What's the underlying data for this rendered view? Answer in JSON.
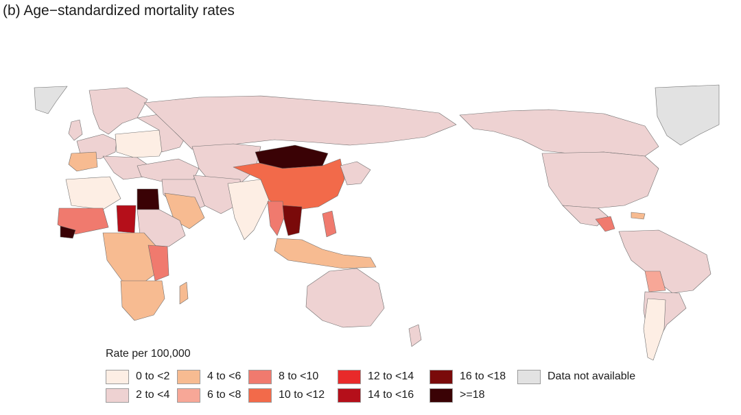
{
  "title": "(b)  Age−standardized mortality rates",
  "palette": {
    "c0": "#fdeee4",
    "c2": "#eed2d2",
    "c4": "#f7bb91",
    "c6": "#f7a797",
    "c8": "#f07a6e",
    "c10": "#f26a4a",
    "c12": "#e82a2a",
    "c14": "#b50f1a",
    "c16": "#7a0a0a",
    "c18": "#3a0205",
    "na": "#e2e2e2"
  },
  "legend": {
    "title": "Rate per 100,000",
    "items": [
      {
        "label": "0 to <2",
        "color": "#fdeee4"
      },
      {
        "label": "2 to <4",
        "color": "#eed2d2"
      },
      {
        "label": "4 to <6",
        "color": "#f7bb91"
      },
      {
        "label": "6 to <8",
        "color": "#f7a797"
      },
      {
        "label": "8 to <10",
        "color": "#f07a6e"
      },
      {
        "label": "10 to <12",
        "color": "#f26a4a"
      },
      {
        "label": "12 to <14",
        "color": "#e82a2a"
      },
      {
        "label": "14 to <16",
        "color": "#b50f1a"
      },
      {
        "label": "16 to <18",
        "color": "#7a0a0a"
      },
      {
        "label": ">=18",
        "color": "#3a0205"
      },
      {
        "label": "Data not available",
        "color": "#e2e2e2"
      }
    ]
  }
}
